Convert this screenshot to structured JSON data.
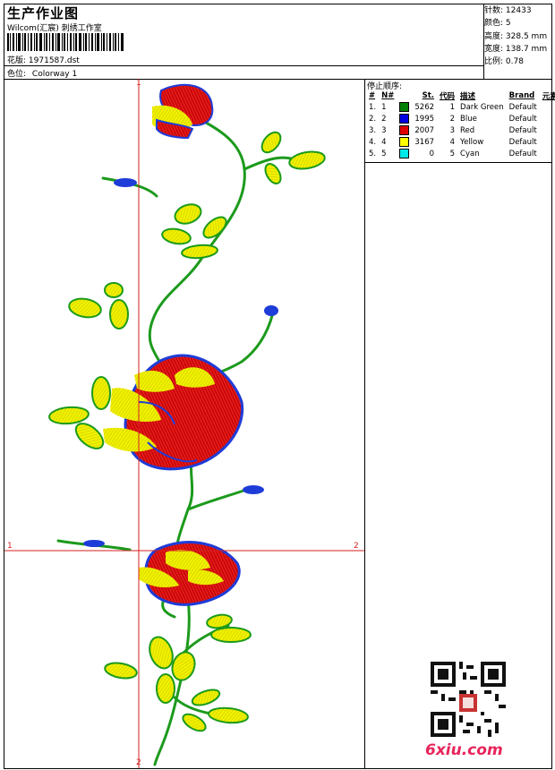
{
  "header": {
    "title": "生产作业图",
    "studio": "Wilcom(汇宸)  刺绣工作室",
    "design_label": "花版:",
    "design_value": "1971587.dst",
    "colorway_label": "色位:",
    "colorway_value": "Colorway 1"
  },
  "stats": {
    "stitches_label": "针数:",
    "stitches_value": "12433",
    "colors_label": "颜色:",
    "colors_value": "5",
    "height_label": "高度:",
    "height_value": "328.5 mm",
    "width_label": "宽度:",
    "width_value": "138.7 mm",
    "scale_label": "比例:",
    "scale_value": "0.78"
  },
  "stop_sequence": {
    "title": "停止顺序:",
    "headers": [
      "#",
      "N#",
      "",
      "St.",
      "代码",
      "描述",
      "Brand",
      "元素"
    ],
    "rows": [
      {
        "n": "1.",
        "nn": "1",
        "color": "#008000",
        "st": "5262",
        "code": "1",
        "desc": "Dark Green",
        "brand": "Default"
      },
      {
        "n": "2.",
        "nn": "2",
        "color": "#0000e0",
        "st": "1995",
        "code": "2",
        "desc": "Blue",
        "brand": "Default"
      },
      {
        "n": "3.",
        "nn": "3",
        "color": "#e00000",
        "st": "2007",
        "code": "3",
        "desc": "Red",
        "brand": "Default"
      },
      {
        "n": "4.",
        "nn": "4",
        "color": "#ffff00",
        "st": "3167",
        "code": "4",
        "desc": "Yellow",
        "brand": "Default"
      },
      {
        "n": "5.",
        "nn": "5",
        "color": "#00e8e8",
        "st": "0",
        "code": "5",
        "desc": "Cyan",
        "brand": "Default"
      }
    ]
  },
  "guides": {
    "v_top": "1",
    "v_bottom": "2",
    "h_left": "1",
    "h_right": "2",
    "color": "#d42020"
  },
  "watermark": "6xiu.com"
}
